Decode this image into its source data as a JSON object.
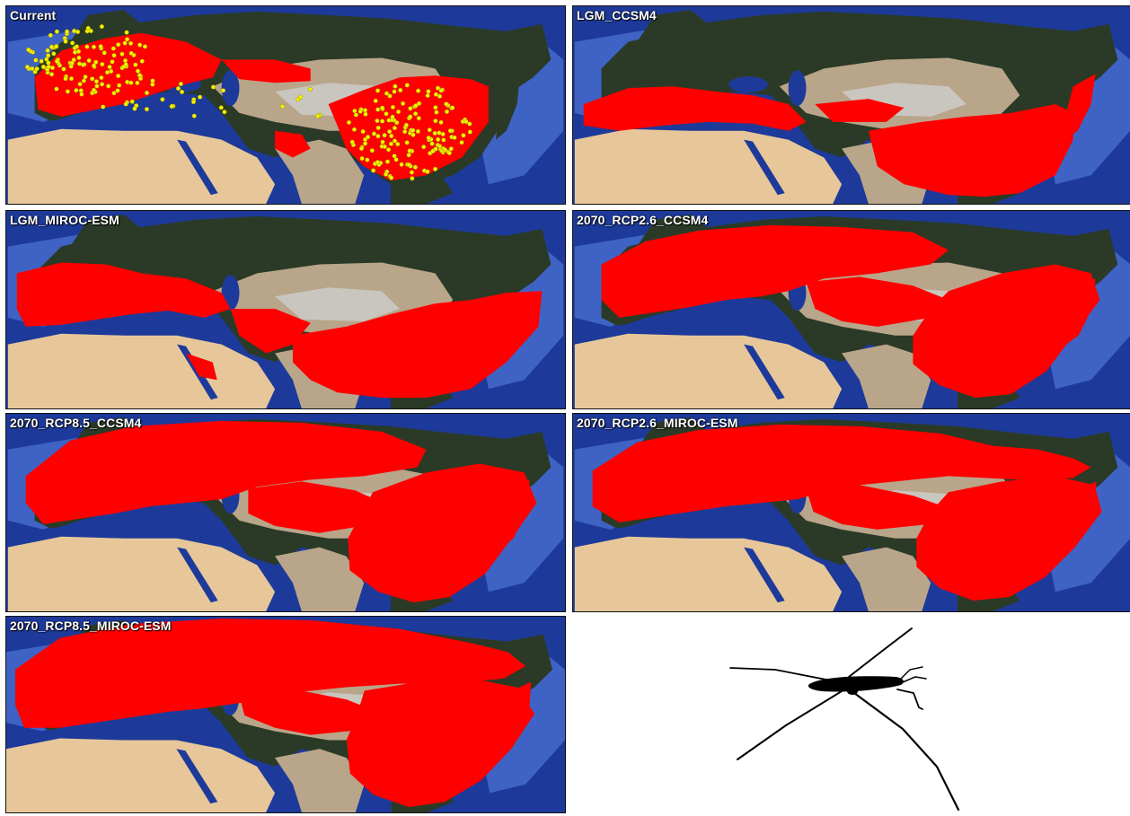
{
  "figure": {
    "panels": [
      {
        "id": "p1",
        "label": "Current",
        "scenario": "current",
        "occurrence_points": true
      },
      {
        "id": "p2",
        "label": "LGM_CCSM4",
        "scenario": "lgm"
      },
      {
        "id": "p3",
        "label": "LGM_MIROC-ESM",
        "scenario": "lgm2"
      },
      {
        "id": "p4",
        "label": "2070_RCP2.6_CCSM4",
        "scenario": "future_low"
      },
      {
        "id": "p5",
        "label": "2070_RCP8.5_CCSM4",
        "scenario": "future_high"
      },
      {
        "id": "p6",
        "label": "2070_RCP2.6_MIROC-ESM",
        "scenario": "future_low2"
      },
      {
        "id": "p7",
        "label": "2070_RCP8.5_MIROC-ESM",
        "scenario": "future_high2"
      }
    ],
    "colors": {
      "ocean": "#1d3a9a",
      "shallow_sea": "#3f63c4",
      "forest": "#2a3a26",
      "desert": "#e7c79a",
      "steppe": "#b9a58a",
      "mountain": "#c9c6bf",
      "suitable_habitat": "#ff0000",
      "occurrence_point": "#f5f000"
    },
    "species_silhouette": "water-strider"
  }
}
